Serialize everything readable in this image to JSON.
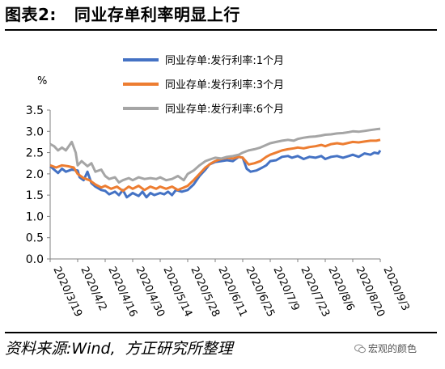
{
  "header": {
    "figure_label": "图表2:",
    "title": "同业存单利率明显上行"
  },
  "footer": {
    "source_label": "资料来源:",
    "source": "Wind,",
    "source_detail": "方正研究所整理",
    "watermark": "宏观的颜色"
  },
  "colors": {
    "series_1m": "#4472C4",
    "series_3m": "#ED7D31",
    "series_6m": "#A5A5A5",
    "axis": "#808080",
    "text": "#000000"
  },
  "icons": {
    "watermark": "wechat-icon"
  },
  "chart_data": {
    "type": "line",
    "unit_label": "%",
    "ylim": [
      0.0,
      3.5
    ],
    "yticks": [
      "3.5",
      "3.0",
      "2.5",
      "2.0",
      "1.5",
      "1.0",
      "0.5",
      "0.0"
    ],
    "xticks": [
      "2020/3/19",
      "2020/4/2",
      "2020/4/16",
      "2020/4/30",
      "2020/5/14",
      "2020/5/28",
      "2020/6/11",
      "2020/6/25",
      "2020/7/9",
      "2020/7/23",
      "2020/8/6",
      "2020/8/20",
      "2020/9/3"
    ],
    "grid": false,
    "legend_position": "top-center",
    "x_range": [
      "2020/3/19",
      "2020/9/3"
    ],
    "series": [
      {
        "name": "同业存单:发行利率:1个月",
        "color": "#4472C4",
        "points": [
          [
            "2020/3/19",
            2.18
          ],
          [
            "2020/3/21",
            2.1
          ],
          [
            "2020/3/23",
            2.02
          ],
          [
            "2020/3/25",
            2.12
          ],
          [
            "2020/3/27",
            2.05
          ],
          [
            "2020/3/30",
            2.1
          ],
          [
            "2020/4/2",
            2.08
          ],
          [
            "2020/4/3",
            1.92
          ],
          [
            "2020/4/5",
            1.85
          ],
          [
            "2020/4/7",
            2.05
          ],
          [
            "2020/4/9",
            1.78
          ],
          [
            "2020/4/11",
            1.7
          ],
          [
            "2020/4/14",
            1.62
          ],
          [
            "2020/4/16",
            1.6
          ],
          [
            "2020/4/18",
            1.52
          ],
          [
            "2020/4/21",
            1.58
          ],
          [
            "2020/4/23",
            1.5
          ],
          [
            "2020/4/25",
            1.62
          ],
          [
            "2020/4/27",
            1.45
          ],
          [
            "2020/4/30",
            1.55
          ],
          [
            "2020/5/3",
            1.48
          ],
          [
            "2020/5/5",
            1.58
          ],
          [
            "2020/5/7",
            1.45
          ],
          [
            "2020/5/9",
            1.55
          ],
          [
            "2020/5/11",
            1.5
          ],
          [
            "2020/5/14",
            1.55
          ],
          [
            "2020/5/16",
            1.52
          ],
          [
            "2020/5/18",
            1.58
          ],
          [
            "2020/5/20",
            1.5
          ],
          [
            "2020/5/22",
            1.62
          ],
          [
            "2020/5/25",
            1.58
          ],
          [
            "2020/5/28",
            1.62
          ],
          [
            "2020/5/31",
            1.75
          ],
          [
            "2020/6/3",
            1.95
          ],
          [
            "2020/6/6",
            2.1
          ],
          [
            "2020/6/8",
            2.22
          ],
          [
            "2020/6/11",
            2.28
          ],
          [
            "2020/6/14",
            2.3
          ],
          [
            "2020/6/17",
            2.32
          ],
          [
            "2020/6/20",
            2.3
          ],
          [
            "2020/6/23",
            2.4
          ],
          [
            "2020/6/25",
            2.38
          ],
          [
            "2020/6/27",
            2.12
          ],
          [
            "2020/6/29",
            2.05
          ],
          [
            "2020/7/2",
            2.08
          ],
          [
            "2020/7/5",
            2.15
          ],
          [
            "2020/7/7",
            2.2
          ],
          [
            "2020/7/9",
            2.3
          ],
          [
            "2020/7/12",
            2.32
          ],
          [
            "2020/7/15",
            2.4
          ],
          [
            "2020/7/18",
            2.42
          ],
          [
            "2020/7/20",
            2.38
          ],
          [
            "2020/7/23",
            2.42
          ],
          [
            "2020/7/26",
            2.35
          ],
          [
            "2020/7/29",
            2.4
          ],
          [
            "2020/8/1",
            2.38
          ],
          [
            "2020/8/4",
            2.42
          ],
          [
            "2020/8/6",
            2.35
          ],
          [
            "2020/8/9",
            2.4
          ],
          [
            "2020/8/12",
            2.42
          ],
          [
            "2020/8/15",
            2.38
          ],
          [
            "2020/8/18",
            2.42
          ],
          [
            "2020/8/20",
            2.45
          ],
          [
            "2020/8/23",
            2.4
          ],
          [
            "2020/8/26",
            2.48
          ],
          [
            "2020/8/29",
            2.45
          ],
          [
            "2020/8/31",
            2.5
          ],
          [
            "2020/9/2",
            2.48
          ],
          [
            "2020/9/3",
            2.55
          ]
        ]
      },
      {
        "name": "同业存单:发行利率:3个月",
        "color": "#ED7D31",
        "points": [
          [
            "2020/3/19",
            2.2
          ],
          [
            "2020/3/22",
            2.15
          ],
          [
            "2020/3/25",
            2.2
          ],
          [
            "2020/3/28",
            2.18
          ],
          [
            "2020/3/31",
            2.15
          ],
          [
            "2020/4/2",
            2.0
          ],
          [
            "2020/4/5",
            1.9
          ],
          [
            "2020/4/8",
            1.85
          ],
          [
            "2020/4/11",
            1.75
          ],
          [
            "2020/4/14",
            1.68
          ],
          [
            "2020/4/16",
            1.72
          ],
          [
            "2020/4/19",
            1.65
          ],
          [
            "2020/4/22",
            1.7
          ],
          [
            "2020/4/25",
            1.6
          ],
          [
            "2020/4/28",
            1.7
          ],
          [
            "2020/4/30",
            1.65
          ],
          [
            "2020/5/3",
            1.72
          ],
          [
            "2020/5/6",
            1.62
          ],
          [
            "2020/5/9",
            1.7
          ],
          [
            "2020/5/12",
            1.65
          ],
          [
            "2020/5/14",
            1.7
          ],
          [
            "2020/5/17",
            1.65
          ],
          [
            "2020/5/20",
            1.7
          ],
          [
            "2020/5/23",
            1.62
          ],
          [
            "2020/5/26",
            1.68
          ],
          [
            "2020/5/28",
            1.72
          ],
          [
            "2020/5/31",
            1.85
          ],
          [
            "2020/6/3",
            2.0
          ],
          [
            "2020/6/6",
            2.15
          ],
          [
            "2020/6/9",
            2.25
          ],
          [
            "2020/6/11",
            2.3
          ],
          [
            "2020/6/14",
            2.35
          ],
          [
            "2020/6/17",
            2.38
          ],
          [
            "2020/6/20",
            2.36
          ],
          [
            "2020/6/23",
            2.4
          ],
          [
            "2020/6/25",
            2.38
          ],
          [
            "2020/6/28",
            2.22
          ],
          [
            "2020/7/1",
            2.25
          ],
          [
            "2020/7/4",
            2.3
          ],
          [
            "2020/7/7",
            2.4
          ],
          [
            "2020/7/9",
            2.45
          ],
          [
            "2020/7/12",
            2.5
          ],
          [
            "2020/7/15",
            2.55
          ],
          [
            "2020/7/18",
            2.58
          ],
          [
            "2020/7/21",
            2.6
          ],
          [
            "2020/7/23",
            2.62
          ],
          [
            "2020/7/26",
            2.6
          ],
          [
            "2020/7/29",
            2.63
          ],
          [
            "2020/8/1",
            2.65
          ],
          [
            "2020/8/4",
            2.68
          ],
          [
            "2020/8/6",
            2.65
          ],
          [
            "2020/8/9",
            2.7
          ],
          [
            "2020/8/12",
            2.72
          ],
          [
            "2020/8/15",
            2.7
          ],
          [
            "2020/8/18",
            2.73
          ],
          [
            "2020/8/20",
            2.75
          ],
          [
            "2020/8/23",
            2.74
          ],
          [
            "2020/8/26",
            2.76
          ],
          [
            "2020/8/29",
            2.78
          ],
          [
            "2020/9/1",
            2.78
          ],
          [
            "2020/9/3",
            2.8
          ]
        ]
      },
      {
        "name": "同业存单:发行利率:6个月",
        "color": "#A5A5A5",
        "points": [
          [
            "2020/3/19",
            2.7
          ],
          [
            "2020/3/21",
            2.65
          ],
          [
            "2020/3/23",
            2.55
          ],
          [
            "2020/3/25",
            2.62
          ],
          [
            "2020/3/27",
            2.55
          ],
          [
            "2020/3/30",
            2.75
          ],
          [
            "2020/4/1",
            2.5
          ],
          [
            "2020/4/2",
            2.2
          ],
          [
            "2020/4/4",
            2.3
          ],
          [
            "2020/4/7",
            2.18
          ],
          [
            "2020/4/9",
            2.25
          ],
          [
            "2020/4/11",
            2.05
          ],
          [
            "2020/4/14",
            2.1
          ],
          [
            "2020/4/16",
            1.95
          ],
          [
            "2020/4/18",
            1.88
          ],
          [
            "2020/4/21",
            1.92
          ],
          [
            "2020/4/23",
            1.8
          ],
          [
            "2020/4/25",
            1.85
          ],
          [
            "2020/4/28",
            1.9
          ],
          [
            "2020/4/30",
            1.85
          ],
          [
            "2020/5/3",
            1.92
          ],
          [
            "2020/5/6",
            1.88
          ],
          [
            "2020/5/9",
            1.9
          ],
          [
            "2020/5/12",
            1.88
          ],
          [
            "2020/5/14",
            1.92
          ],
          [
            "2020/5/17",
            1.85
          ],
          [
            "2020/5/20",
            1.88
          ],
          [
            "2020/5/23",
            1.95
          ],
          [
            "2020/5/26",
            1.85
          ],
          [
            "2020/5/28",
            2.0
          ],
          [
            "2020/5/31",
            2.08
          ],
          [
            "2020/6/3",
            2.2
          ],
          [
            "2020/6/6",
            2.3
          ],
          [
            "2020/6/9",
            2.35
          ],
          [
            "2020/6/11",
            2.38
          ],
          [
            "2020/6/14",
            2.36
          ],
          [
            "2020/6/17",
            2.4
          ],
          [
            "2020/6/20",
            2.42
          ],
          [
            "2020/6/23",
            2.45
          ],
          [
            "2020/6/25",
            2.5
          ],
          [
            "2020/6/28",
            2.55
          ],
          [
            "2020/7/1",
            2.58
          ],
          [
            "2020/7/4",
            2.62
          ],
          [
            "2020/7/7",
            2.68
          ],
          [
            "2020/7/9",
            2.72
          ],
          [
            "2020/7/12",
            2.75
          ],
          [
            "2020/7/15",
            2.78
          ],
          [
            "2020/7/18",
            2.8
          ],
          [
            "2020/7/21",
            2.78
          ],
          [
            "2020/7/23",
            2.82
          ],
          [
            "2020/7/26",
            2.85
          ],
          [
            "2020/7/29",
            2.87
          ],
          [
            "2020/8/1",
            2.88
          ],
          [
            "2020/8/4",
            2.9
          ],
          [
            "2020/8/6",
            2.92
          ],
          [
            "2020/8/9",
            2.93
          ],
          [
            "2020/8/12",
            2.95
          ],
          [
            "2020/8/15",
            2.96
          ],
          [
            "2020/8/18",
            2.98
          ],
          [
            "2020/8/20",
            3.0
          ],
          [
            "2020/8/23",
            2.99
          ],
          [
            "2020/8/26",
            3.01
          ],
          [
            "2020/8/29",
            3.03
          ],
          [
            "2020/9/1",
            3.05
          ],
          [
            "2020/9/3",
            3.06
          ]
        ]
      }
    ]
  }
}
